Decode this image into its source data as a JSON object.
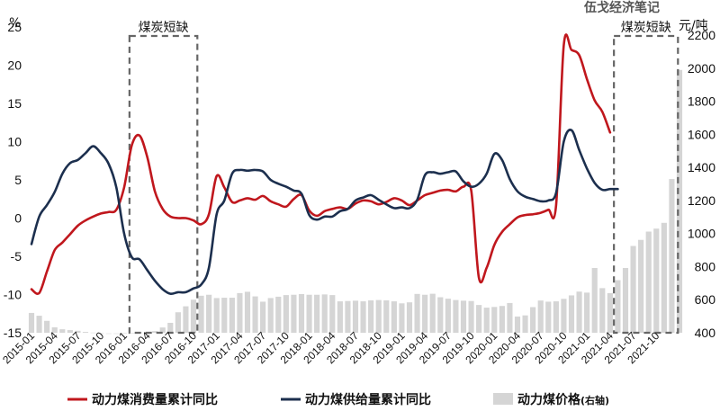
{
  "watermark": "伍戈经济笔记",
  "chart_data": {
    "type": "line",
    "title": "",
    "y_left_unit": "%",
    "y_right_unit": "元/吨",
    "y_left_ticks": [
      "25",
      "20",
      "15",
      "10",
      "5",
      "0",
      "-5",
      "-10",
      "-15"
    ],
    "y_left_range": [
      -15,
      25
    ],
    "y_right_ticks": [
      "2200",
      "2000",
      "1800",
      "1600",
      "1400",
      "1200",
      "1000",
      "800",
      "600",
      "400"
    ],
    "y_right_range": [
      400,
      2250
    ],
    "x_tick_labels": [
      "2015-01",
      "2015-04",
      "2015-07",
      "2015-10",
      "2016-01",
      "2016-04",
      "2016-07",
      "2016-10",
      "2017-01",
      "2017-04",
      "2017-07",
      "2017-10",
      "2018-01",
      "2018-04",
      "2018-07",
      "2018-10",
      "2019-01",
      "2019-04",
      "2019-07",
      "2019-10",
      "2020-01",
      "2020-04",
      "2020-07",
      "2020-10",
      "2021-01",
      "2021-04",
      "2021-07",
      "2021-10"
    ],
    "annotations": [
      {
        "label": "煤炭短缺",
        "x_start": 13.7,
        "x_end": 22.5
      },
      {
        "label": "煤炭短缺",
        "x_start": 76.5,
        "x_end": 84.8
      }
    ],
    "legend": [
      {
        "name": "动力煤消费量累计同比",
        "axis_note": "",
        "color": "#c0171d",
        "kind": "line"
      },
      {
        "name": "动力煤供给量累计同比",
        "axis_note": "",
        "color": "#1c2f4e",
        "kind": "line"
      },
      {
        "name": "动力煤价格",
        "axis_note": "(右轴)",
        "color": "#d5d5d5",
        "kind": "bar"
      }
    ],
    "series": [
      {
        "name": "动力煤消费量累计同比",
        "axis": "left",
        "color": "#c0171d",
        "points": [
          [
            1,
            -9.3
          ],
          [
            2,
            -9.8
          ],
          [
            3,
            -7
          ],
          [
            4,
            -4.2
          ],
          [
            5,
            -3.2
          ],
          [
            6,
            -2.1
          ],
          [
            7,
            -1
          ],
          [
            8,
            -0.3
          ],
          [
            9,
            0.2
          ],
          [
            10,
            0.6
          ],
          [
            11,
            0.8
          ],
          [
            12,
            1.1
          ],
          [
            13,
            4
          ],
          [
            14,
            9.5
          ],
          [
            15,
            10.8
          ],
          [
            16,
            8
          ],
          [
            17,
            3.5
          ],
          [
            18,
            1.2
          ],
          [
            19,
            0.2
          ],
          [
            20,
            0
          ],
          [
            21,
            0
          ],
          [
            22,
            -0.3
          ],
          [
            23,
            -0.8
          ],
          [
            24,
            0.5
          ],
          [
            25,
            5.5
          ],
          [
            26,
            4
          ],
          [
            27,
            2.1
          ],
          [
            28,
            2.3
          ],
          [
            29,
            2.6
          ],
          [
            30,
            2.4
          ],
          [
            31,
            2.9
          ],
          [
            32,
            2.2
          ],
          [
            33,
            1.8
          ],
          [
            34,
            1.5
          ],
          [
            35,
            2.5
          ],
          [
            36,
            3
          ],
          [
            37,
            1
          ],
          [
            38,
            0.3
          ],
          [
            39,
            0.9
          ],
          [
            40,
            1.2
          ],
          [
            41,
            1.4
          ],
          [
            42,
            1.2
          ],
          [
            43,
            1.9
          ],
          [
            44,
            2.3
          ],
          [
            45,
            2.2
          ],
          [
            46,
            1.8
          ],
          [
            47,
            2.1
          ],
          [
            48,
            2.6
          ],
          [
            49,
            2.3
          ],
          [
            50,
            1.7
          ],
          [
            51,
            2.3
          ],
          [
            52,
            3
          ],
          [
            53,
            3.3
          ],
          [
            54,
            3.6
          ],
          [
            55,
            3.7
          ],
          [
            56,
            3.5
          ],
          [
            57,
            4.1
          ],
          [
            58,
            3.6
          ],
          [
            59,
            -7.8
          ],
          [
            60,
            -6.5
          ],
          [
            61,
            -3.5
          ],
          [
            62,
            -1.8
          ],
          [
            63,
            -0.8
          ],
          [
            64,
            0.1
          ],
          [
            65,
            0.4
          ],
          [
            66,
            0.5
          ],
          [
            67,
            0.7
          ],
          [
            68,
            1.1
          ],
          [
            69,
            1.7
          ],
          [
            70,
            22.6
          ],
          [
            71,
            22
          ],
          [
            72,
            21.3
          ],
          [
            73,
            18.2
          ],
          [
            74,
            15.4
          ],
          [
            75,
            13.9
          ],
          [
            76,
            11.2
          ]
        ]
      },
      {
        "name": "动力煤供给量累计同比",
        "axis": "left",
        "color": "#1c2f4e",
        "points": [
          [
            1,
            -3.4
          ],
          [
            2,
            0.2
          ],
          [
            3,
            1.7
          ],
          [
            4,
            3.4
          ],
          [
            5,
            5.8
          ],
          [
            6,
            7.2
          ],
          [
            7,
            7.6
          ],
          [
            8,
            8.5
          ],
          [
            9,
            9.4
          ],
          [
            10,
            8.5
          ],
          [
            11,
            7.1
          ],
          [
            12,
            4
          ],
          [
            13,
            -2
          ],
          [
            14,
            -5.1
          ],
          [
            15,
            -5.4
          ],
          [
            16,
            -6.8
          ],
          [
            17,
            -8.2
          ],
          [
            18,
            -9.3
          ],
          [
            19,
            -9.9
          ],
          [
            20,
            -9.7
          ],
          [
            21,
            -9.7
          ],
          [
            22,
            -9.2
          ],
          [
            23,
            -8.7
          ],
          [
            24,
            -6.5
          ],
          [
            25,
            0.5
          ],
          [
            26,
            2.3
          ],
          [
            27,
            5.8
          ],
          [
            28,
            6.3
          ],
          [
            29,
            6.2
          ],
          [
            30,
            6.3
          ],
          [
            31,
            6.1
          ],
          [
            32,
            5
          ],
          [
            33,
            4.5
          ],
          [
            34,
            4.1
          ],
          [
            35,
            3.6
          ],
          [
            36,
            3.2
          ],
          [
            37,
            0.4
          ],
          [
            38,
            -0.2
          ],
          [
            39,
            0.2
          ],
          [
            40,
            0.2
          ],
          [
            41,
            0.9
          ],
          [
            42,
            1.2
          ],
          [
            43,
            2.3
          ],
          [
            44,
            2.7
          ],
          [
            45,
            3
          ],
          [
            46,
            2.4
          ],
          [
            47,
            1.8
          ],
          [
            48,
            1.3
          ],
          [
            49,
            1.4
          ],
          [
            50,
            1.3
          ],
          [
            51,
            2.4
          ],
          [
            52,
            5.6
          ],
          [
            53,
            6
          ],
          [
            54,
            5.8
          ],
          [
            55,
            6
          ],
          [
            56,
            6.1
          ],
          [
            57,
            4.8
          ],
          [
            58,
            4.1
          ],
          [
            59,
            4.5
          ],
          [
            60,
            5.8
          ],
          [
            61,
            8.4
          ],
          [
            62,
            7.6
          ],
          [
            63,
            5.1
          ],
          [
            64,
            3.5
          ],
          [
            65,
            2.8
          ],
          [
            66,
            2.5
          ],
          [
            67,
            2.2
          ],
          [
            68,
            2.3
          ],
          [
            69,
            3.3
          ],
          [
            70,
            10
          ],
          [
            71,
            11.5
          ],
          [
            72,
            8.9
          ],
          [
            73,
            6.5
          ],
          [
            74,
            4.6
          ],
          [
            75,
            3.7
          ],
          [
            76,
            3.8
          ],
          [
            77,
            3.8
          ]
        ]
      },
      {
        "name": "动力煤价格",
        "axis": "right",
        "kind": "bar",
        "color": "#d5d5d5",
        "points": [
          [
            1,
            520
          ],
          [
            2,
            503
          ],
          [
            3,
            472
          ],
          [
            4,
            433
          ],
          [
            5,
            421
          ],
          [
            6,
            416
          ],
          [
            7,
            412
          ],
          [
            8,
            405
          ],
          [
            9,
            401
          ],
          [
            10,
            398
          ],
          [
            11,
            396
          ],
          [
            12,
            396
          ],
          [
            13,
            398
          ],
          [
            14,
            400
          ],
          [
            15,
            402
          ],
          [
            16,
            404
          ],
          [
            17,
            410
          ],
          [
            18,
            432
          ],
          [
            19,
            460
          ],
          [
            20,
            524
          ],
          [
            21,
            560
          ],
          [
            22,
            600
          ],
          [
            23,
            624
          ],
          [
            24,
            630
          ],
          [
            25,
            610
          ],
          [
            26,
            612
          ],
          [
            27,
            612
          ],
          [
            28,
            640
          ],
          [
            29,
            648
          ],
          [
            30,
            620
          ],
          [
            31,
            588
          ],
          [
            32,
            610
          ],
          [
            33,
            618
          ],
          [
            34,
            628
          ],
          [
            35,
            630
          ],
          [
            36,
            634
          ],
          [
            37,
            630
          ],
          [
            38,
            630
          ],
          [
            39,
            632
          ],
          [
            40,
            628
          ],
          [
            41,
            590
          ],
          [
            42,
            592
          ],
          [
            43,
            594
          ],
          [
            44,
            590
          ],
          [
            45,
            596
          ],
          [
            46,
            598
          ],
          [
            47,
            596
          ],
          [
            48,
            590
          ],
          [
            49,
            578
          ],
          [
            50,
            584
          ],
          [
            51,
            635
          ],
          [
            52,
            630
          ],
          [
            53,
            636
          ],
          [
            54,
            615
          ],
          [
            55,
            606
          ],
          [
            56,
            598
          ],
          [
            57,
            594
          ],
          [
            58,
            592
          ],
          [
            59,
            568
          ],
          [
            60,
            552
          ],
          [
            61,
            556
          ],
          [
            62,
            562
          ],
          [
            63,
            580
          ],
          [
            64,
            498
          ],
          [
            65,
            505
          ],
          [
            66,
            555
          ],
          [
            67,
            595
          ],
          [
            68,
            588
          ],
          [
            69,
            590
          ],
          [
            70,
            605
          ],
          [
            71,
            626
          ],
          [
            72,
            649
          ],
          [
            73,
            643
          ],
          [
            74,
            792
          ],
          [
            75,
            670
          ],
          [
            76,
            640
          ],
          [
            77,
            718
          ],
          [
            78,
            792
          ],
          [
            79,
            925
          ],
          [
            80,
            962
          ],
          [
            81,
            1012
          ],
          [
            82,
            1030
          ],
          [
            83,
            1065
          ],
          [
            84,
            1330
          ],
          [
            85,
            1990
          ]
        ]
      }
    ]
  }
}
